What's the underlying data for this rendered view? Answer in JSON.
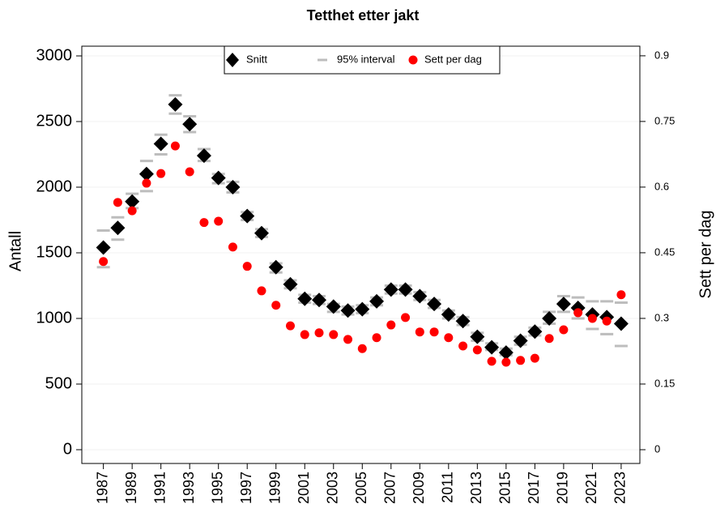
{
  "chart_data": {
    "type": "scatter",
    "title": "Tetthet etter jakt",
    "ylabel": "Antall",
    "y2label": "Sett per dag",
    "x": [
      1987,
      1988,
      1989,
      1990,
      1991,
      1992,
      1993,
      1994,
      1995,
      1996,
      1997,
      1998,
      1999,
      2000,
      2001,
      2002,
      2003,
      2004,
      2005,
      2006,
      2007,
      2008,
      2009,
      2010,
      2011,
      2012,
      2013,
      2014,
      2015,
      2016,
      2017,
      2018,
      2019,
      2020,
      2021,
      2022,
      2023
    ],
    "series": [
      {
        "name": "Snitt",
        "color": "#000000",
        "values": [
          1540,
          1690,
          1890,
          2100,
          2330,
          2630,
          2480,
          2240,
          2070,
          2000,
          1780,
          1650,
          1390,
          1260,
          1150,
          1140,
          1090,
          1060,
          1070,
          1130,
          1220,
          1220,
          1170,
          1110,
          1030,
          980,
          860,
          780,
          740,
          830,
          900,
          1000,
          1110,
          1080,
          1030,
          1010,
          960
        ]
      },
      {
        "name": "95% interval",
        "color": "#bdbdbd",
        "values": [
          1390,
          1600,
          1840,
          1970,
          2250,
          2560,
          2420,
          2200,
          2030,
          1960,
          1750,
          1620,
          1350,
          1230,
          1120,
          1110,
          1050,
          1030,
          1040,
          1100,
          1190,
          1190,
          1140,
          1080,
          1000,
          950,
          830,
          760,
          720,
          800,
          870,
          960,
          1050,
          1000,
          920,
          880,
          790
        ],
        "upper": [
          1670,
          1770,
          1950,
          2200,
          2400,
          2700,
          2540,
          2290,
          2100,
          2040,
          1810,
          1680,
          1420,
          1290,
          1180,
          1170,
          1110,
          1090,
          1100,
          1160,
          1250,
          1250,
          1200,
          1140,
          1060,
          1010,
          890,
          810,
          770,
          860,
          930,
          1050,
          1170,
          1160,
          1130,
          1130,
          1120
        ]
      },
      {
        "name": "Sett per dag",
        "color": "#ff0000",
        "axis": "y2",
        "values": [
          0.43,
          0.565,
          0.546,
          0.609,
          0.631,
          0.694,
          0.635,
          0.519,
          0.522,
          0.463,
          0.419,
          0.363,
          0.33,
          0.283,
          0.263,
          0.267,
          0.263,
          0.252,
          0.231,
          0.256,
          0.285,
          0.302,
          0.269,
          0.269,
          0.256,
          0.237,
          0.228,
          0.202,
          0.2,
          0.204,
          0.209,
          0.254,
          0.274,
          0.313,
          0.3,
          0.294,
          0.354
        ]
      }
    ],
    "xlim": [
      1985.5,
      2024.3
    ],
    "xticks": [
      1987,
      1989,
      1991,
      1993,
      1995,
      1997,
      1999,
      2001,
      2003,
      2005,
      2007,
      2009,
      2011,
      2013,
      2015,
      2017,
      2019,
      2021,
      2023
    ],
    "ylim": [
      -105,
      3074
    ],
    "yticks": [
      0,
      500,
      1000,
      1500,
      2000,
      2500,
      3000
    ],
    "y2lim": [
      -0.0315,
      0.922
    ],
    "y2ticks": [
      0,
      0.15,
      0.3,
      0.45,
      0.6,
      0.75,
      0.9
    ],
    "grid": true,
    "legend": "top"
  }
}
